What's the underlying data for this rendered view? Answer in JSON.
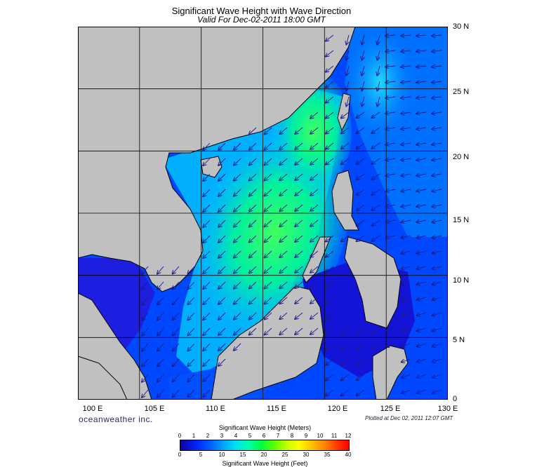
{
  "header": {
    "title": "Significant Wave Height with Wave Direction",
    "subtitle": "Valid For Dec-02-2011 18:00 GMT"
  },
  "map": {
    "lon_range": [
      100,
      130
    ],
    "lat_range": [
      0,
      30
    ],
    "grid": true,
    "grid_step_deg": 5,
    "lat_labels": [
      "30 N",
      "25 N",
      "20 N",
      "15 N",
      "10 N",
      "5 N",
      "0"
    ],
    "lon_labels": [
      "100 E",
      "105 E",
      "110 E",
      "115 E",
      "120 E",
      "125 E",
      "130 E"
    ],
    "land_color": "#c0c0c0",
    "arrow_color": "#1a1a8c",
    "dominant_wave_direction": "from northeast"
  },
  "footer": {
    "brand": "oceanweather inc.",
    "plotted": "Plotted at Dec 02, 2011 12:07 GMT"
  },
  "colorbar": {
    "title_meters": "Significant Wave Height (Meters)",
    "title_feet": "Significant Wave Height (Feet)",
    "meter_ticks": [
      "0",
      "1",
      "2",
      "3",
      "4",
      "5",
      "6",
      "7",
      "8",
      "9",
      "10",
      "11",
      "12"
    ],
    "feet_ticks": [
      "0",
      "5",
      "10",
      "15",
      "20",
      "25",
      "30",
      "35",
      "40"
    ],
    "colors": [
      "#1000a0",
      "#0028ff",
      "#00a8ff",
      "#00e0f0",
      "#00ff40",
      "#c0ff00",
      "#ffff00",
      "#ff8000",
      "#ff0000"
    ]
  }
}
